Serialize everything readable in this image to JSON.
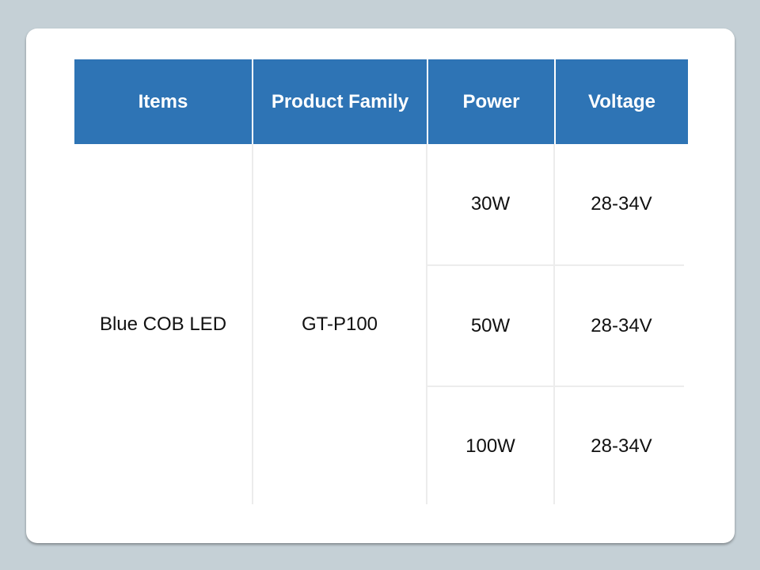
{
  "table": {
    "headers": [
      "Items",
      "Product Family",
      "Power",
      "Voltage"
    ],
    "item": "Blue COB LED",
    "family": "GT-P100",
    "rows": [
      {
        "power": "30W",
        "voltage": "28-34V"
      },
      {
        "power": "50W",
        "voltage": "28-34V"
      },
      {
        "power": "100W",
        "voltage": "28-34V"
      }
    ]
  },
  "colors": {
    "header_bg": "#2e74b5",
    "header_text": "#ffffff",
    "background": "#c5d0d6"
  }
}
